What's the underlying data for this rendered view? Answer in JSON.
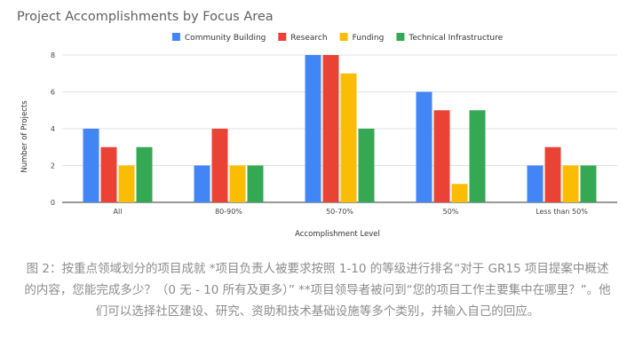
{
  "chart_data": {
    "type": "bar",
    "title": "Project Accomplishments by Focus Area",
    "xlabel": "Accomplishment Level",
    "ylabel": "Number of Projects",
    "categories": [
      "All",
      "80-90%",
      "50-70%",
      "50%",
      "Less than 50%"
    ],
    "series": [
      {
        "name": "Community Building",
        "color": "#4285f4",
        "values": [
          4,
          2,
          8,
          6,
          2
        ]
      },
      {
        "name": "Research",
        "color": "#ea4335",
        "values": [
          3,
          4,
          8,
          5,
          3
        ]
      },
      {
        "name": "Funding",
        "color": "#fbbc04",
        "values": [
          2,
          2,
          7,
          1,
          2
        ]
      },
      {
        "name": "Technical Infrastructure",
        "color": "#34a853",
        "values": [
          3,
          2,
          4,
          5,
          2
        ]
      }
    ],
    "ylim": [
      0,
      8
    ],
    "yticks": [
      0,
      2,
      4,
      6,
      8
    ],
    "grid": true,
    "legend_position": "top"
  },
  "caption": "图 2：按重点领域划分的项目成就 *项目负责人被要求按照 1-10 的等级进行排名“对于 GR15 项目提案中概述的内容，您能完成多少？（0 无 - 10 所有及更多）” **项目领导者被问到“您的项目工作主要集中在哪里？”。他们可以选择社区建设、研究、资助和技术基础设施等多个类别，并输入自己的回应。"
}
